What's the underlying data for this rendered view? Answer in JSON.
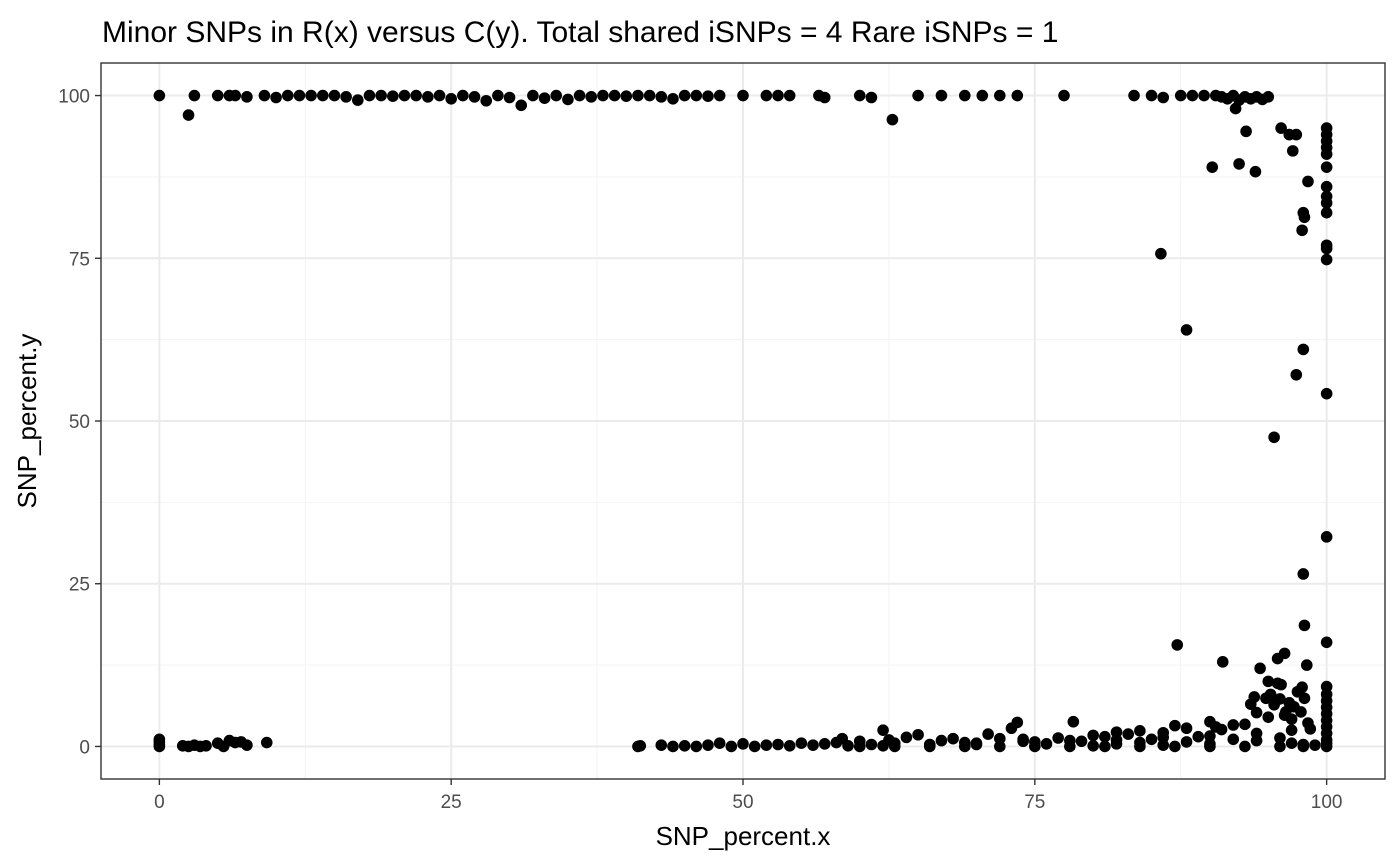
{
  "chart_data": {
    "type": "scatter",
    "title": "Minor SNPs in R(x) versus C(y). Total shared iSNPs =  4  Rare iSNPs =  1",
    "xlabel": "SNP_percent.x",
    "ylabel": "SNP_percent.y",
    "xlim": [
      -5,
      105
    ],
    "ylim": [
      -5,
      105
    ],
    "x_ticks": [
      0,
      25,
      50,
      75,
      100
    ],
    "x_tick_labels": [
      "0",
      "25",
      "50",
      "75",
      "100"
    ],
    "y_ticks": [
      0,
      25,
      50,
      75,
      100
    ],
    "y_tick_labels": [
      "0",
      "25",
      "50",
      "75",
      "100"
    ],
    "grid": true,
    "legend": "none",
    "point_color": "#000000",
    "points": [
      [
        0,
        100
      ],
      [
        2.5,
        97
      ],
      [
        3,
        100
      ],
      [
        5,
        100
      ],
      [
        6,
        100
      ],
      [
        6.5,
        100
      ],
      [
        7.5,
        99.8
      ],
      [
        9,
        100
      ],
      [
        10,
        99.7
      ],
      [
        11,
        100
      ],
      [
        12,
        100
      ],
      [
        13,
        100
      ],
      [
        14,
        100
      ],
      [
        15,
        100
      ],
      [
        16,
        99.8
      ],
      [
        17,
        99.3
      ],
      [
        18,
        100
      ],
      [
        19,
        100
      ],
      [
        20,
        99.9
      ],
      [
        21,
        100
      ],
      [
        22,
        100
      ],
      [
        23,
        99.8
      ],
      [
        24,
        100
      ],
      [
        25,
        99.5
      ],
      [
        26,
        100
      ],
      [
        27,
        99.8
      ],
      [
        28,
        99.2
      ],
      [
        29,
        100
      ],
      [
        30,
        99.7
      ],
      [
        31,
        98.5
      ],
      [
        32,
        100
      ],
      [
        33,
        99.6
      ],
      [
        34,
        100
      ],
      [
        35,
        99.4
      ],
      [
        36,
        100
      ],
      [
        37,
        99.8
      ],
      [
        38,
        100
      ],
      [
        39,
        100
      ],
      [
        40,
        99.9
      ],
      [
        41,
        100
      ],
      [
        42,
        100
      ],
      [
        43,
        99.8
      ],
      [
        44,
        99.5
      ],
      [
        45,
        100
      ],
      [
        46,
        100
      ],
      [
        47,
        99.9
      ],
      [
        48,
        100
      ],
      [
        50,
        100
      ],
      [
        52,
        100
      ],
      [
        53,
        100
      ],
      [
        54,
        100
      ],
      [
        56.5,
        100
      ],
      [
        57,
        99.7
      ],
      [
        60,
        100
      ],
      [
        61,
        99.7
      ],
      [
        62.8,
        96.3
      ],
      [
        65,
        100
      ],
      [
        67,
        100
      ],
      [
        69,
        100
      ],
      [
        70.5,
        100
      ],
      [
        72,
        100
      ],
      [
        73.5,
        100
      ],
      [
        77.5,
        100
      ],
      [
        83.5,
        100
      ],
      [
        85,
        100
      ],
      [
        86,
        99.7
      ],
      [
        87.5,
        100
      ],
      [
        88.5,
        100
      ],
      [
        89.5,
        100
      ],
      [
        90.5,
        100
      ],
      [
        91,
        99.8
      ],
      [
        91.5,
        99.5
      ],
      [
        92,
        100
      ],
      [
        92.5,
        99.3
      ],
      [
        93,
        99.8
      ],
      [
        93.5,
        99.5
      ],
      [
        94,
        99.8
      ],
      [
        94.5,
        99.4
      ],
      [
        95,
        99.8
      ],
      [
        92.2,
        98
      ],
      [
        92.5,
        89.5
      ],
      [
        93.1,
        94.5
      ],
      [
        93.9,
        88.3
      ],
      [
        90.2,
        89
      ],
      [
        96.1,
        95
      ],
      [
        96.8,
        94
      ],
      [
        97.1,
        91.5
      ],
      [
        97.4,
        94
      ],
      [
        98.4,
        86.8
      ],
      [
        98,
        82
      ],
      [
        98.1,
        81.3
      ],
      [
        97.9,
        79.3
      ],
      [
        100,
        95
      ],
      [
        100,
        94
      ],
      [
        100,
        93
      ],
      [
        100,
        92
      ],
      [
        100,
        91
      ],
      [
        100,
        89
      ],
      [
        100,
        86
      ],
      [
        100,
        84.5
      ],
      [
        100,
        83.5
      ],
      [
        100,
        82
      ],
      [
        100,
        77
      ],
      [
        100,
        76.5
      ],
      [
        100,
        74.8
      ],
      [
        85.8,
        75.7
      ],
      [
        88,
        64
      ],
      [
        98,
        61
      ],
      [
        97.4,
        57.1
      ],
      [
        100,
        54.2
      ],
      [
        95.5,
        47.5
      ],
      [
        100,
        32.2
      ],
      [
        98,
        26.5
      ],
      [
        98.1,
        18.6
      ],
      [
        100,
        16
      ],
      [
        87.2,
        15.6
      ],
      [
        96.4,
        14.3
      ],
      [
        95.8,
        13.5
      ],
      [
        98.3,
        12.5
      ],
      [
        91.1,
        13
      ],
      [
        94.3,
        12
      ],
      [
        95,
        10
      ],
      [
        95.8,
        9.7
      ],
      [
        96.1,
        9.5
      ],
      [
        97.9,
        9.1
      ],
      [
        100,
        9.2
      ],
      [
        100,
        8
      ],
      [
        100,
        7
      ],
      [
        100,
        6
      ],
      [
        100,
        5
      ],
      [
        100,
        4
      ],
      [
        100,
        3
      ],
      [
        100,
        2
      ],
      [
        100,
        1
      ],
      [
        100,
        0.5
      ],
      [
        100,
        0
      ],
      [
        0,
        0
      ],
      [
        0,
        0.3
      ],
      [
        0,
        0.7
      ],
      [
        0,
        1.1
      ],
      [
        2,
        0.1
      ],
      [
        2.5,
        0
      ],
      [
        3,
        0.2
      ],
      [
        3.5,
        0
      ],
      [
        4,
        0.1
      ],
      [
        5,
        0.5
      ],
      [
        5.5,
        0
      ],
      [
        6,
        0.9
      ],
      [
        6.5,
        0.6
      ],
      [
        7,
        0.7
      ],
      [
        7.5,
        0.2
      ],
      [
        9.2,
        0.6
      ],
      [
        41,
        0
      ],
      [
        41.2,
        0.1
      ],
      [
        43,
        0.2
      ],
      [
        44,
        0
      ],
      [
        45,
        0.1
      ],
      [
        46,
        0
      ],
      [
        47,
        0.2
      ],
      [
        48,
        0.5
      ],
      [
        49,
        0
      ],
      [
        50,
        0.4
      ],
      [
        51,
        0
      ],
      [
        52,
        0.2
      ],
      [
        53,
        0.3
      ],
      [
        54,
        0.1
      ],
      [
        55,
        0.5
      ],
      [
        56,
        0.2
      ],
      [
        57,
        0.4
      ],
      [
        58,
        0.6
      ],
      [
        58.5,
        1.2
      ],
      [
        59,
        0.1
      ],
      [
        60,
        0.8
      ],
      [
        61,
        0.3
      ],
      [
        62,
        2.5
      ],
      [
        62.5,
        1
      ],
      [
        63,
        0.5
      ],
      [
        64,
        1.4
      ],
      [
        65,
        1.8
      ],
      [
        66,
        0.2
      ],
      [
        67,
        0.9
      ],
      [
        68,
        1.2
      ],
      [
        69,
        0.6
      ],
      [
        70,
        0.3
      ],
      [
        71,
        1.9
      ],
      [
        72,
        1.2
      ],
      [
        73,
        2.8
      ],
      [
        73.5,
        3.7
      ],
      [
        74,
        1.1
      ],
      [
        75,
        0.7
      ],
      [
        76,
        0.4
      ],
      [
        77,
        1.3
      ],
      [
        78.3,
        3.8
      ],
      [
        79,
        0.8
      ],
      [
        80,
        1.7
      ],
      [
        81,
        1.5
      ],
      [
        82,
        2.2
      ],
      [
        83,
        1.9
      ],
      [
        84,
        2.4
      ],
      [
        85,
        1.1
      ],
      [
        86,
        2.1
      ],
      [
        87,
        3.2
      ],
      [
        88,
        2.8
      ],
      [
        89,
        1.5
      ],
      [
        90,
        3.8
      ],
      [
        90.5,
        3
      ],
      [
        91,
        2.6
      ],
      [
        92,
        3.3
      ],
      [
        93,
        3.4
      ],
      [
        93.5,
        6.5
      ],
      [
        93.8,
        7.6
      ],
      [
        94,
        5.2
      ],
      [
        94.8,
        7.4
      ],
      [
        95.2,
        8
      ],
      [
        95.5,
        6.4
      ],
      [
        96,
        7.3
      ],
      [
        96.4,
        4.8
      ],
      [
        96.8,
        6.7
      ],
      [
        97.2,
        6.1
      ],
      [
        97.5,
        8.4
      ],
      [
        97.8,
        5.3
      ],
      [
        98.1,
        7.4
      ],
      [
        98.4,
        3.6
      ],
      [
        98.6,
        2.7
      ],
      [
        96.5,
        5.3
      ],
      [
        97,
        4.2
      ],
      [
        95,
        4.5
      ],
      [
        60,
        0
      ],
      [
        63,
        0
      ],
      [
        66,
        0
      ],
      [
        69,
        0
      ],
      [
        72,
        0
      ],
      [
        75,
        0
      ],
      [
        78,
        0
      ],
      [
        81,
        0
      ],
      [
        84,
        0
      ],
      [
        87,
        0
      ],
      [
        90,
        0
      ],
      [
        93,
        0
      ],
      [
        96,
        0
      ],
      [
        98,
        0
      ],
      [
        62,
        0.1
      ],
      [
        66,
        0.3
      ],
      [
        70,
        0.5
      ],
      [
        74,
        0.8
      ],
      [
        78,
        0.9
      ],
      [
        82,
        1
      ],
      [
        86,
        1.4
      ],
      [
        90,
        1.6
      ],
      [
        94,
        2
      ],
      [
        97,
        2.5
      ],
      [
        80,
        0.1
      ],
      [
        82,
        0.4
      ],
      [
        84,
        0.6
      ],
      [
        86,
        0.2
      ],
      [
        88,
        0.7
      ],
      [
        90,
        0.4
      ],
      [
        92,
        1.1
      ],
      [
        94,
        0.9
      ],
      [
        96,
        1.3
      ],
      [
        97,
        0.5
      ],
      [
        98,
        0.3
      ],
      [
        99,
        0.2
      ]
    ]
  }
}
